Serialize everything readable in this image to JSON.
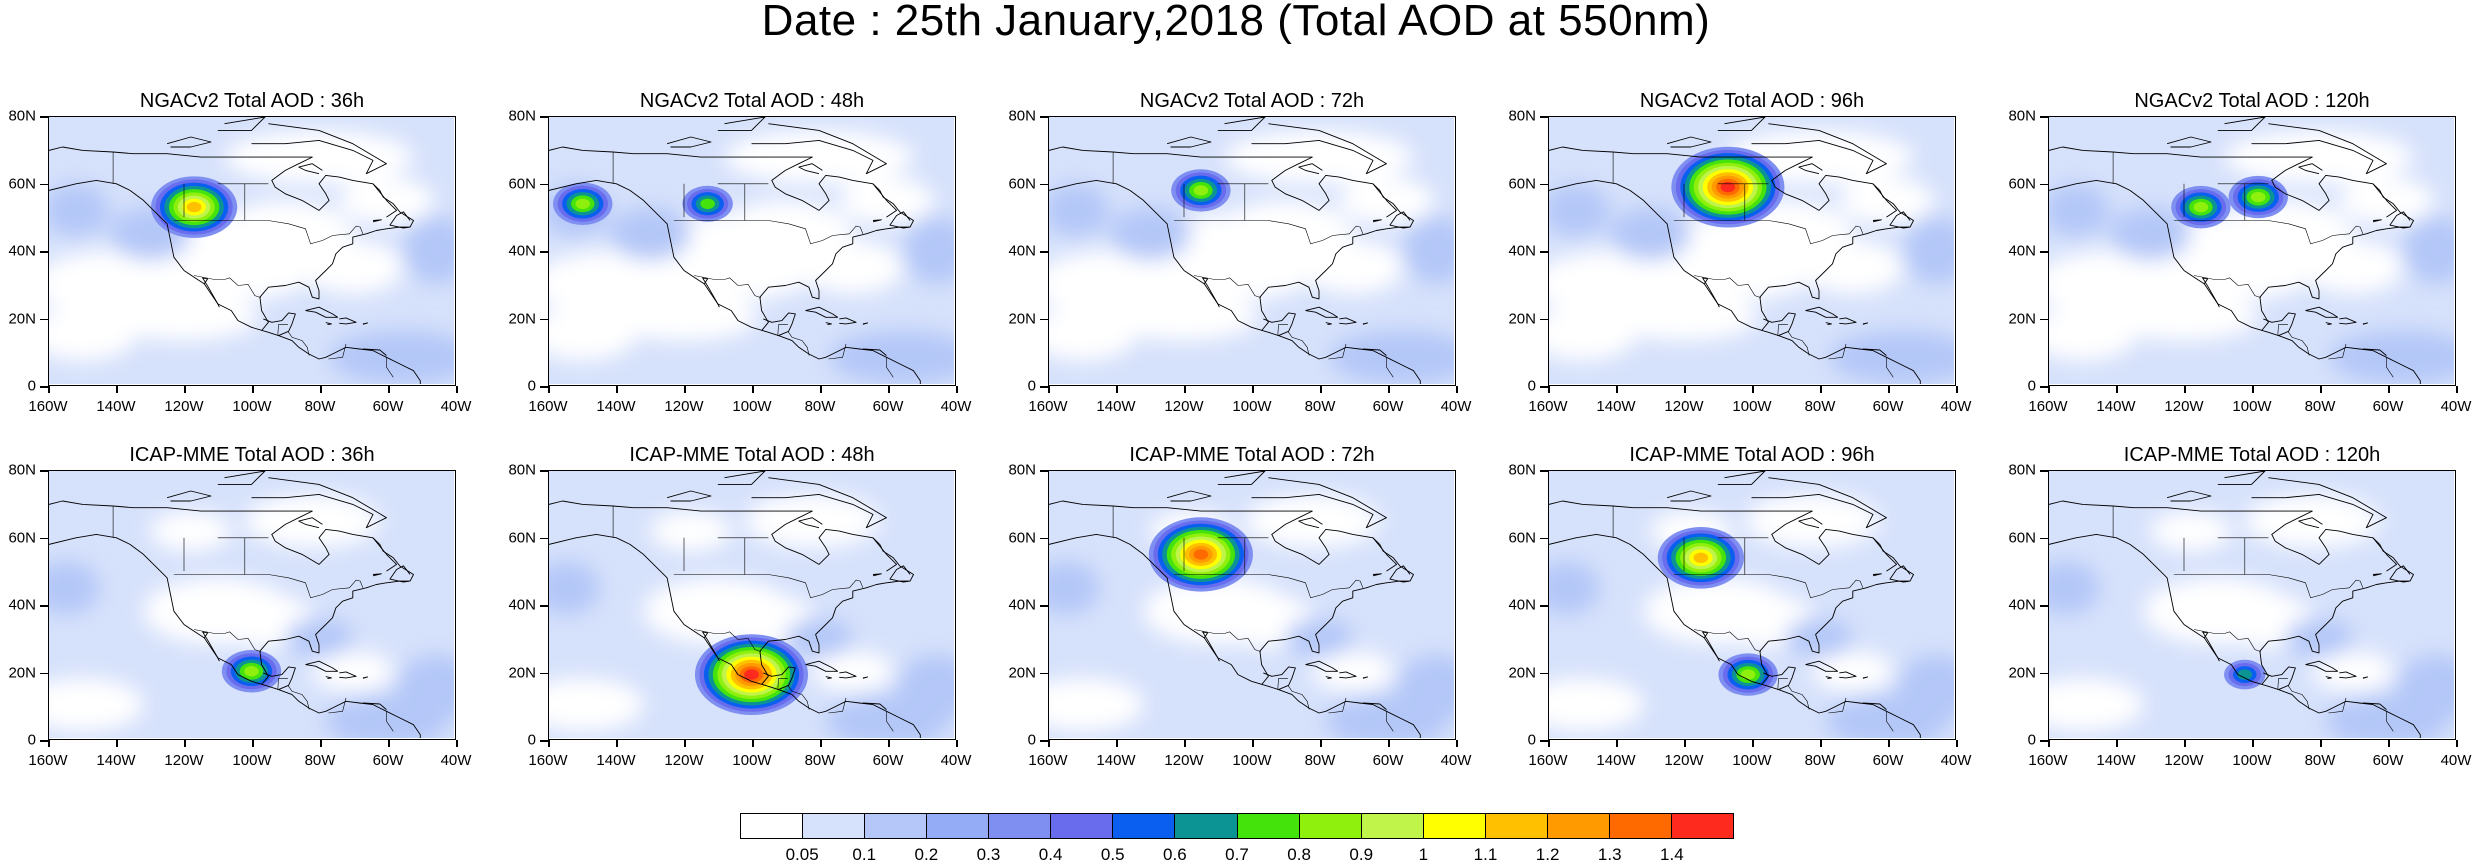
{
  "title": "Date : 25th January,2018 (Total AOD at 550nm)",
  "y_tick_labels": [
    "80N",
    "60N",
    "40N",
    "20N",
    "0"
  ],
  "x_tick_labels": [
    "160W",
    "140W",
    "120W",
    "100W",
    "80W",
    "60W",
    "40W"
  ],
  "panels": [
    {
      "title": "NGACv2 Total AOD : 36h",
      "hotspots": [
        {
          "lon": -117,
          "lat": 53,
          "aod": 1.1
        }
      ]
    },
    {
      "title": "NGACv2 Total AOD : 48h",
      "hotspots": [
        {
          "lon": -150,
          "lat": 54,
          "aod": 0.8
        },
        {
          "lon": -113,
          "lat": 54,
          "aod": 0.7
        }
      ]
    },
    {
      "title": "NGACv2 Total AOD : 72h",
      "hotspots": [
        {
          "lon": -115,
          "lat": 58,
          "aod": 0.8
        }
      ]
    },
    {
      "title": "NGACv2 Total AOD : 96h",
      "hotspots": [
        {
          "lon": -107,
          "lat": 59,
          "aod": 1.4
        }
      ]
    },
    {
      "title": "NGACv2 Total AOD : 120h",
      "hotspots": [
        {
          "lon": -115,
          "lat": 53,
          "aod": 0.8
        },
        {
          "lon": -98,
          "lat": 56,
          "aod": 0.8
        }
      ]
    },
    {
      "title": "ICAP-MME Total AOD : 36h",
      "hotspots": [
        {
          "lon": -100,
          "lat": 20,
          "aod": 0.8
        }
      ]
    },
    {
      "title": "ICAP-MME Total AOD : 48h",
      "hotspots": [
        {
          "lon": -100,
          "lat": 19,
          "aod": 1.4
        }
      ]
    },
    {
      "title": "ICAP-MME Total AOD : 72h",
      "hotspots": [
        {
          "lon": -115,
          "lat": 55,
          "aod": 1.3
        }
      ]
    },
    {
      "title": "ICAP-MME Total AOD : 96h",
      "hotspots": [
        {
          "lon": -115,
          "lat": 54,
          "aod": 1.1
        },
        {
          "lon": -101,
          "lat": 19,
          "aod": 0.8
        }
      ]
    },
    {
      "title": "ICAP-MME Total AOD : 120h",
      "hotspots": [
        {
          "lon": -102,
          "lat": 19,
          "aod": 0.6
        }
      ]
    }
  ],
  "colorbar": {
    "labels": [
      "0.05",
      "0.1",
      "0.2",
      "0.3",
      "0.4",
      "0.5",
      "0.6",
      "0.7",
      "0.8",
      "0.9",
      "1",
      "1.1",
      "1.2",
      "1.3",
      "1.4"
    ],
    "colors": [
      "#ffffff",
      "#d6e1fb",
      "#b4c7f8",
      "#94abf5",
      "#7f8ef1",
      "#6a6cee",
      "#0a5ff0",
      "#0c9494",
      "#44e30c",
      "#8ef00c",
      "#c0f44a",
      "#ffff00",
      "#ffc000",
      "#ff9a00",
      "#ff6a00",
      "#ff2a1e"
    ]
  },
  "map_extent": {
    "lon_min": -160,
    "lon_max": -40,
    "lat_min": 0,
    "lat_max": 80
  }
}
